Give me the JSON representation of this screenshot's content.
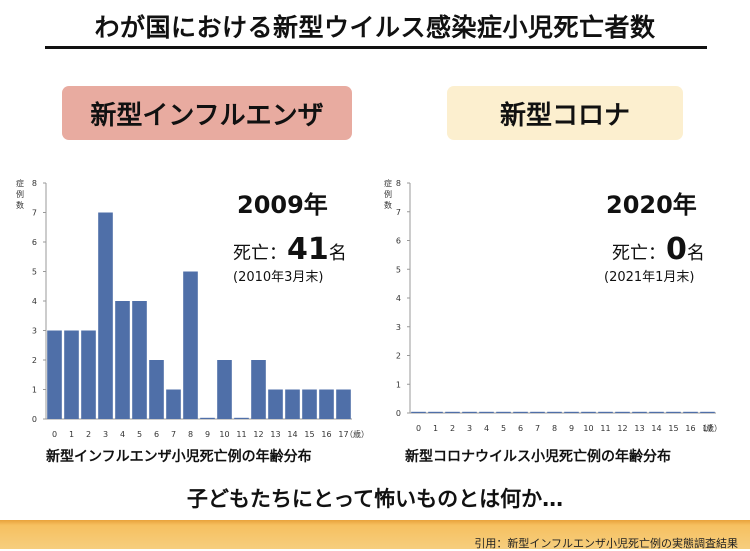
{
  "page": {
    "title": "わが国における新型ウイルス感染症小児死亡者数",
    "bottom_question": "子どもたちにとって怖いものとは何か…",
    "citation": "引用：新型インフルエンザ小児死亡例の実態調査結果"
  },
  "colors": {
    "flu_label_bg": "#e8aba0",
    "covid_label_bg": "#fcefcf",
    "bar": "#4f6fa8",
    "bottom_band": "#f4bb55"
  },
  "flu": {
    "label": "新型インフルエンザ",
    "year": "2009年",
    "deaths_prefix": "死亡：",
    "deaths_number": "41",
    "deaths_suffix": "名",
    "note": "(2010年3月末)",
    "caption": "新型インフルエンザ小児死亡例の年齢分布"
  },
  "covid": {
    "label": "新型コロナ",
    "year": "2020年",
    "deaths_prefix": "死亡：",
    "deaths_number": "0",
    "deaths_suffix": "名",
    "note": "(2021年1月末)",
    "caption": "新型コロナウイルス小児死亡例の年齢分布"
  },
  "chart_data": [
    {
      "type": "bar",
      "ylabel": "症例数",
      "x_unit": "（歳）",
      "categories": [
        "0",
        "1",
        "2",
        "3",
        "4",
        "5",
        "6",
        "7",
        "8",
        "9",
        "10",
        "11",
        "12",
        "13",
        "14",
        "15",
        "16",
        "17"
      ],
      "values": [
        3,
        3,
        3,
        7,
        4,
        4,
        2,
        1,
        5,
        0,
        2,
        0,
        2,
        1,
        1,
        1,
        1,
        1
      ],
      "ylim": [
        0,
        8
      ],
      "yticks": [
        0,
        1,
        2,
        3,
        4,
        5,
        6,
        7,
        8
      ],
      "grid": false
    },
    {
      "type": "bar",
      "ylabel": "症例数",
      "x_unit": "（歳）",
      "categories": [
        "0",
        "1",
        "2",
        "3",
        "4",
        "5",
        "6",
        "7",
        "8",
        "9",
        "10",
        "11",
        "12",
        "13",
        "14",
        "15",
        "16",
        "17"
      ],
      "values": [
        0,
        0,
        0,
        0,
        0,
        0,
        0,
        0,
        0,
        0,
        0,
        0,
        0,
        0,
        0,
        0,
        0,
        0
      ],
      "ylim": [
        0,
        8
      ],
      "yticks": [
        0,
        1,
        2,
        3,
        4,
        5,
        6,
        7,
        8
      ],
      "grid": false
    }
  ]
}
